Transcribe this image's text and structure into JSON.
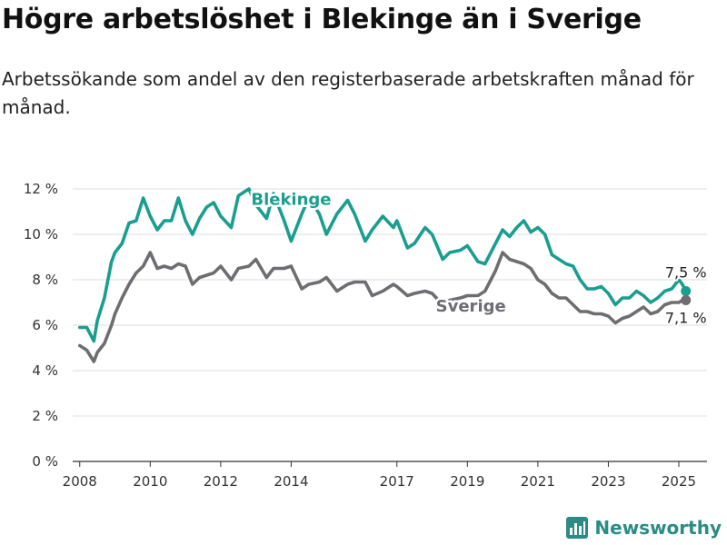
{
  "title": "Högre arbetslöshet i Blekinge än i Sverige",
  "subtitle": "Arbetssökande som andel av den registerbaserade arbetskraften månad för månad.",
  "brand": "Newsworthy",
  "colors": {
    "blekinge": "#1a9e8f",
    "sverige": "#6e6e72",
    "grid": "#dddddd",
    "axis": "#333333",
    "brand": "#2a8c84"
  },
  "chart_data": {
    "type": "line",
    "title": "Högre arbetslöshet i Blekinge än i Sverige",
    "subtitle": "Arbetssökande som andel av den registerbaserade arbetskraften månad för månad.",
    "xlabel": "",
    "ylabel": "",
    "xlim": [
      2007.8,
      2025.8
    ],
    "ylim": [
      0,
      12
    ],
    "y_ticks": [
      0,
      2,
      4,
      6,
      8,
      10,
      12
    ],
    "y_tick_labels": [
      "0 %",
      "2 %",
      "4 %",
      "6 %",
      "8 %",
      "10 %",
      "12 %"
    ],
    "x_ticks": [
      2008,
      2010,
      2012,
      2014,
      2017,
      2019,
      2021,
      2023,
      2025
    ],
    "x_tick_labels": [
      "2008",
      "2010",
      "2012",
      "2014",
      "2017",
      "2019",
      "2021",
      "2023",
      "2025"
    ],
    "grid": true,
    "legend": "none",
    "series": [
      {
        "name": "Blekinge",
        "color": "#1a9e8f",
        "end_label": "7,5 %",
        "x": [
          2008.0,
          2008.2,
          2008.4,
          2008.5,
          2008.7,
          2008.9,
          2009.0,
          2009.2,
          2009.4,
          2009.6,
          2009.8,
          2010.0,
          2010.2,
          2010.4,
          2010.6,
          2010.8,
          2011.0,
          2011.2,
          2011.4,
          2011.6,
          2011.8,
          2012.0,
          2012.3,
          2012.5,
          2012.8,
          2013.0,
          2013.3,
          2013.5,
          2013.8,
          2014.0,
          2014.3,
          2014.5,
          2014.8,
          2015.0,
          2015.3,
          2015.6,
          2015.8,
          2016.1,
          2016.3,
          2016.6,
          2016.9,
          2017.0,
          2017.3,
          2017.5,
          2017.8,
          2018.0,
          2018.3,
          2018.5,
          2018.8,
          2019.0,
          2019.3,
          2019.5,
          2019.8,
          2020.0,
          2020.2,
          2020.4,
          2020.6,
          2020.8,
          2021.0,
          2021.2,
          2021.4,
          2021.6,
          2021.8,
          2022.0,
          2022.2,
          2022.4,
          2022.6,
          2022.8,
          2023.0,
          2023.2,
          2023.4,
          2023.6,
          2023.8,
          2024.0,
          2024.2,
          2024.4,
          2024.6,
          2024.8,
          2025.0,
          2025.1,
          2025.2
        ],
        "values": [
          5.9,
          5.9,
          5.3,
          6.2,
          7.2,
          8.8,
          9.2,
          9.6,
          10.5,
          10.6,
          11.6,
          10.8,
          10.2,
          10.6,
          10.6,
          11.6,
          10.6,
          10.0,
          10.7,
          11.2,
          11.4,
          10.8,
          10.3,
          11.7,
          12.0,
          11.3,
          10.7,
          11.8,
          10.6,
          9.7,
          10.9,
          11.6,
          10.9,
          10.0,
          10.9,
          11.5,
          10.9,
          9.7,
          10.2,
          10.8,
          10.3,
          10.6,
          9.4,
          9.6,
          10.3,
          10.0,
          8.9,
          9.2,
          9.3,
          9.5,
          8.8,
          8.7,
          9.6,
          10.2,
          9.9,
          10.3,
          10.6,
          10.1,
          10.3,
          10.0,
          9.1,
          8.9,
          8.7,
          8.6,
          8.0,
          7.6,
          7.6,
          7.7,
          7.4,
          6.9,
          7.2,
          7.2,
          7.5,
          7.3,
          7.0,
          7.2,
          7.5,
          7.6,
          8.0,
          7.8,
          7.5
        ]
      },
      {
        "name": "Sverige",
        "color": "#6e6e72",
        "end_label": "7,1 %",
        "x": [
          2008.0,
          2008.2,
          2008.4,
          2008.5,
          2008.7,
          2008.9,
          2009.0,
          2009.2,
          2009.4,
          2009.6,
          2009.8,
          2010.0,
          2010.2,
          2010.4,
          2010.6,
          2010.8,
          2011.0,
          2011.2,
          2011.4,
          2011.6,
          2011.8,
          2012.0,
          2012.3,
          2012.5,
          2012.8,
          2013.0,
          2013.3,
          2013.5,
          2013.8,
          2014.0,
          2014.3,
          2014.5,
          2014.8,
          2015.0,
          2015.3,
          2015.6,
          2015.8,
          2016.1,
          2016.3,
          2016.6,
          2016.9,
          2017.0,
          2017.3,
          2017.5,
          2017.8,
          2018.0,
          2018.3,
          2018.5,
          2018.8,
          2019.0,
          2019.3,
          2019.5,
          2019.8,
          2020.0,
          2020.2,
          2020.4,
          2020.6,
          2020.8,
          2021.0,
          2021.2,
          2021.4,
          2021.6,
          2021.8,
          2022.0,
          2022.2,
          2022.4,
          2022.6,
          2022.8,
          2023.0,
          2023.2,
          2023.4,
          2023.6,
          2023.8,
          2024.0,
          2024.2,
          2024.4,
          2024.6,
          2024.8,
          2025.0,
          2025.1,
          2025.2
        ],
        "values": [
          5.1,
          4.9,
          4.4,
          4.8,
          5.2,
          6.0,
          6.5,
          7.2,
          7.8,
          8.3,
          8.6,
          9.2,
          8.5,
          8.6,
          8.5,
          8.7,
          8.6,
          7.8,
          8.1,
          8.2,
          8.3,
          8.6,
          8.0,
          8.5,
          8.6,
          8.9,
          8.1,
          8.5,
          8.5,
          8.6,
          7.6,
          7.8,
          7.9,
          8.1,
          7.5,
          7.8,
          7.9,
          7.9,
          7.3,
          7.5,
          7.8,
          7.7,
          7.3,
          7.4,
          7.5,
          7.4,
          6.9,
          7.1,
          7.2,
          7.3,
          7.3,
          7.5,
          8.4,
          9.2,
          8.9,
          8.8,
          8.7,
          8.5,
          8.0,
          7.8,
          7.4,
          7.2,
          7.2,
          6.9,
          6.6,
          6.6,
          6.5,
          6.5,
          6.4,
          6.1,
          6.3,
          6.4,
          6.6,
          6.8,
          6.5,
          6.6,
          6.9,
          7.0,
          7.0,
          7.1,
          7.1
        ]
      }
    ]
  }
}
